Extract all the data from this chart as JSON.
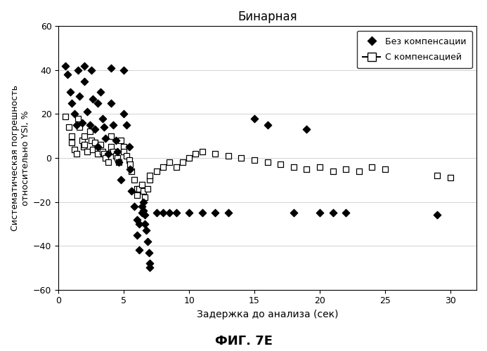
{
  "title": "Бинарная",
  "xlabel": "Задержка до анализа (сек)",
  "ylabel": "Систематическая погрешность\nотносительно YSI, %",
  "caption": "ФИГ. 7Е",
  "xlim": [
    0,
    32
  ],
  "ylim": [
    -60,
    60
  ],
  "xticks": [
    0,
    5,
    10,
    15,
    20,
    25,
    30
  ],
  "yticks": [
    -60,
    -40,
    -20,
    0,
    20,
    40,
    60
  ],
  "legend_label_diamond": "Без компенсации",
  "legend_label_square": "С компенсацией",
  "no_comp_x": [
    0.5,
    0.7,
    0.9,
    1.0,
    1.2,
    1.4,
    1.5,
    1.6,
    1.8,
    2.0,
    2.0,
    2.2,
    2.4,
    2.5,
    2.6,
    2.8,
    3.0,
    3.0,
    3.2,
    3.4,
    3.5,
    3.6,
    3.8,
    4.0,
    4.0,
    4.2,
    4.4,
    4.5,
    4.6,
    4.8,
    5.0,
    5.0,
    5.2,
    5.4,
    5.5,
    5.6,
    5.8,
    6.0,
    6.0,
    6.2,
    6.2,
    6.4,
    6.4,
    6.5,
    6.5,
    6.6,
    6.6,
    6.7,
    6.8,
    6.9,
    7.0,
    7.0,
    7.5,
    8.0,
    8.5,
    9.0,
    10.0,
    11.0,
    12.0,
    13.0,
    15.0,
    16.0,
    18.0,
    19.0,
    20.0,
    21.0,
    22.0,
    29.0
  ],
  "no_comp_y": [
    42,
    38,
    30,
    25,
    20,
    15,
    40,
    28,
    16,
    42,
    35,
    21,
    15,
    40,
    27,
    13,
    25,
    5,
    30,
    18,
    14,
    9,
    2,
    41,
    25,
    15,
    8,
    3,
    -2,
    -10,
    40,
    20,
    15,
    5,
    -5,
    -15,
    -22,
    -28,
    -35,
    -42,
    -30,
    -25,
    -22,
    -20,
    -24,
    -26,
    -30,
    -33,
    -38,
    -43,
    -48,
    -50,
    -25,
    -25,
    -25,
    -25,
    -25,
    -25,
    -25,
    -25,
    18,
    15,
    -25,
    13,
    -25,
    -25,
    -25,
    -26
  ],
  "with_comp_x": [
    0.5,
    0.8,
    1.0,
    1.0,
    1.2,
    1.4,
    1.5,
    1.6,
    1.8,
    1.9,
    2.0,
    2.0,
    2.2,
    2.4,
    2.5,
    2.6,
    2.8,
    3.0,
    3.0,
    3.2,
    3.4,
    3.5,
    3.6,
    3.8,
    4.0,
    4.0,
    4.2,
    4.4,
    4.5,
    4.6,
    4.8,
    5.0,
    5.0,
    5.2,
    5.4,
    5.5,
    5.6,
    5.8,
    6.0,
    6.0,
    6.2,
    6.4,
    6.5,
    6.6,
    6.8,
    7.0,
    7.0,
    7.5,
    8.0,
    8.5,
    9.0,
    9.5,
    10.0,
    10.5,
    11.0,
    12.0,
    13.0,
    14.0,
    15.0,
    16.0,
    17.0,
    18.0,
    19.0,
    20.0,
    21.0,
    22.0,
    23.0,
    24.0,
    25.0,
    29.0,
    30.0
  ],
  "with_comp_y": [
    19,
    14,
    10,
    7,
    4,
    2,
    18,
    14,
    8,
    5,
    10,
    6,
    3,
    12,
    8,
    4,
    7,
    4,
    2,
    6,
    3,
    2,
    0,
    -2,
    10,
    5,
    3,
    1,
    0,
    -2,
    8,
    5,
    3,
    1,
    -1,
    -3,
    -6,
    -10,
    -14,
    -17,
    -14,
    -12,
    -15,
    -18,
    -14,
    -10,
    -8,
    -6,
    -4,
    -2,
    -4,
    -2,
    0,
    2,
    3,
    2,
    1,
    0,
    -1,
    -2,
    -3,
    -4,
    -5,
    -4,
    -6,
    -5,
    -6,
    -4,
    -5,
    -8,
    -9
  ]
}
